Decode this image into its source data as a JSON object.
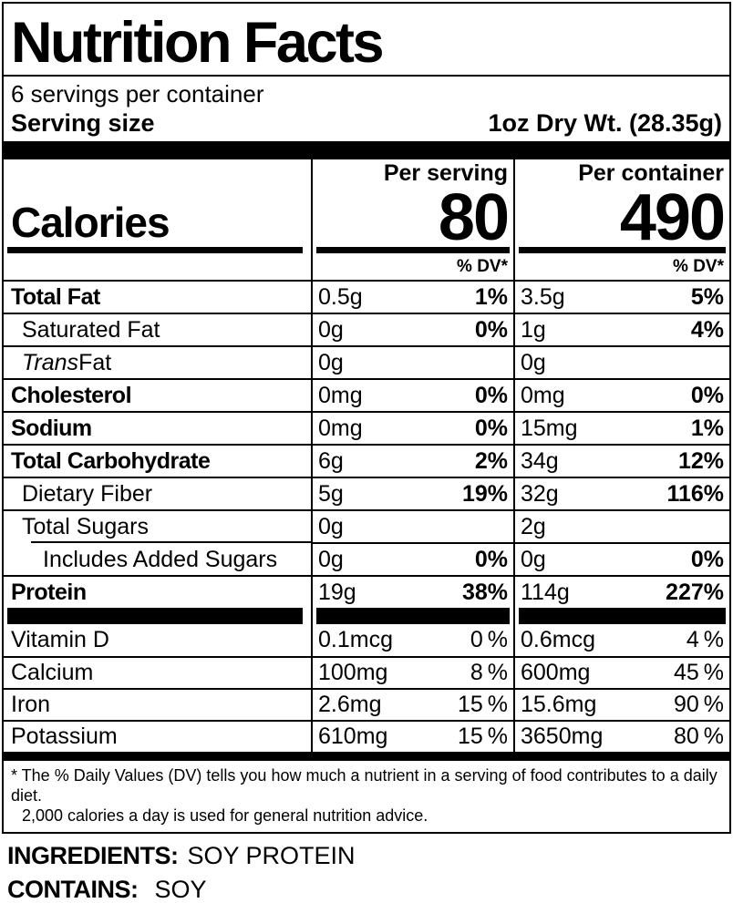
{
  "colors": {
    "ink": "#000000",
    "paper": "#ffffff"
  },
  "header": {
    "title": "Nutrition Facts",
    "servings_per_container": "6 servings per container",
    "serving_size_label": "Serving size",
    "serving_size_value": "1oz Dry Wt. (28.35g)"
  },
  "calories": {
    "label": "Calories",
    "serving_column_header": "Per serving",
    "container_column_header": "Per container",
    "per_serving_value": "80",
    "per_container_value": "490",
    "dv_header_serving": "% DV*",
    "dv_header_container": "% DV*"
  },
  "rows": [
    {
      "name": "Total Fat",
      "s_amt": "0.5g",
      "s_dv": "1%",
      "c_amt": "3.5g",
      "c_dv": "5%"
    },
    {
      "name": "Saturated Fat",
      "s_amt": "0g",
      "s_dv": "0%",
      "c_amt": "1g",
      "c_dv": "4%"
    },
    {
      "name_italic": "Trans",
      "name": " Fat",
      "s_amt": "0g",
      "s_dv": "",
      "c_amt": "0g",
      "c_dv": ""
    },
    {
      "name": "Cholesterol",
      "s_amt": "0mg",
      "s_dv": "0%",
      "c_amt": "0mg",
      "c_dv": "0%"
    },
    {
      "name": "Sodium",
      "s_amt": "0mg",
      "s_dv": "0%",
      "c_amt": "15mg",
      "c_dv": "1%"
    },
    {
      "name": "Total Carbohydrate",
      "s_amt": "6g",
      "s_dv": "2%",
      "c_amt": "34g",
      "c_dv": "12%"
    },
    {
      "name": "Dietary Fiber",
      "s_amt": "5g",
      "s_dv": "19%",
      "c_amt": "32g",
      "c_dv": "116%"
    },
    {
      "name": "Total Sugars",
      "s_amt": "0g",
      "s_dv": "",
      "c_amt": "2g",
      "c_dv": ""
    },
    {
      "name": "Includes Added Sugars",
      "s_amt": "0g",
      "s_dv": "0%",
      "c_amt": "0g",
      "c_dv": "0%"
    },
    {
      "name": "Protein",
      "s_amt": "19g",
      "s_dv": "38%",
      "c_amt": "114g",
      "c_dv": "227%"
    }
  ],
  "vitamins": [
    {
      "name": "Vitamin D",
      "s_amt": "0.1mcg",
      "s_dv": "0 %",
      "c_amt": "0.6mcg",
      "c_dv": "4 %"
    },
    {
      "name": "Calcium",
      "s_amt": "100mg",
      "s_dv": "8 %",
      "c_amt": "600mg",
      "c_dv": "45 %"
    },
    {
      "name": "Iron",
      "s_amt": "2.6mg",
      "s_dv": "15 %",
      "c_amt": "15.6mg",
      "c_dv": "90 %"
    },
    {
      "name": "Potassium",
      "s_amt": "610mg",
      "s_dv": "15 %",
      "c_amt": "3650mg",
      "c_dv": "80 %"
    }
  ],
  "footnote": {
    "line1": "* The % Daily Values (DV) tells you how much a nutrient in a serving of food contributes to a daily diet.",
    "line2": "2,000 calories a day is used for general nutrition advice."
  },
  "ingredients": {
    "label": "INGREDIENTS:",
    "value": "SOY PROTEIN"
  },
  "contains": {
    "label": "CONTAINS:",
    "value": "SOY"
  }
}
